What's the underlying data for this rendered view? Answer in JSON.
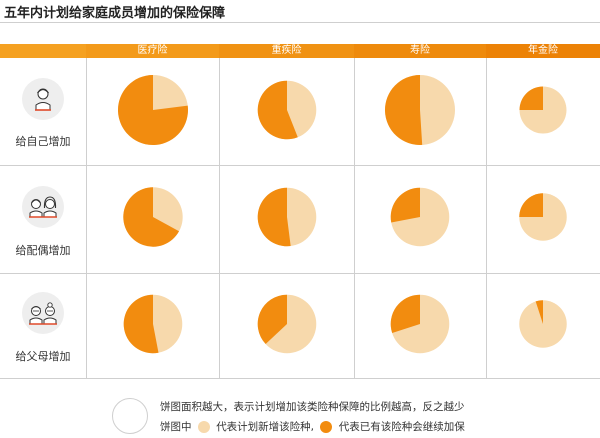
{
  "title": "五年内计划给家庭成员增加的保险保障",
  "colors": {
    "new": "#f7d9ac",
    "existing": "#f28c0f",
    "existing_dark": "#e77607",
    "headers": [
      "#f5a121",
      "#f39a1a",
      "#f09213",
      "#ee8a0c",
      "#ec8206"
    ]
  },
  "rows": [
    {
      "label": "给自己增加",
      "icon": "self-avatar-icon"
    },
    {
      "label": "给配偶增加",
      "icon": "couple-avatar-icon"
    },
    {
      "label": "给父母增加",
      "icon": "parents-avatar-icon"
    }
  ],
  "legend": {
    "line1": "饼图面积越大，表示计划增加该类险种保障的比例越高，反之越少",
    "prefix": "饼图中",
    "new_label": "代表计划新增该险种,",
    "existing_label": "代表已有该险种会继续加保"
  },
  "chart_data": {
    "type": "pie",
    "title": "五年内计划给家庭成员增加的保险保障",
    "categories": [
      "医疗险",
      "重疾险",
      "寿险",
      "年金险"
    ],
    "rows": [
      "给自己增加",
      "给配偶增加",
      "给父母增加"
    ],
    "slice_labels": [
      "代表计划新增该险种",
      "代表已有该险种会继续加保"
    ],
    "size_meaning": "饼图面积越大，表示计划增加该类险种保障的比例越高，反之越少",
    "relative_size": [
      [
        1.0,
        0.7,
        1.0,
        0.45
      ],
      [
        0.72,
        0.7,
        0.7,
        0.46
      ],
      [
        0.7,
        0.7,
        0.7,
        0.46
      ]
    ],
    "existing_share": [
      [
        0.77,
        0.56,
        0.51,
        0.25
      ],
      [
        0.67,
        0.52,
        0.28,
        0.25
      ],
      [
        0.53,
        0.37,
        0.3,
        0.05
      ]
    ]
  }
}
